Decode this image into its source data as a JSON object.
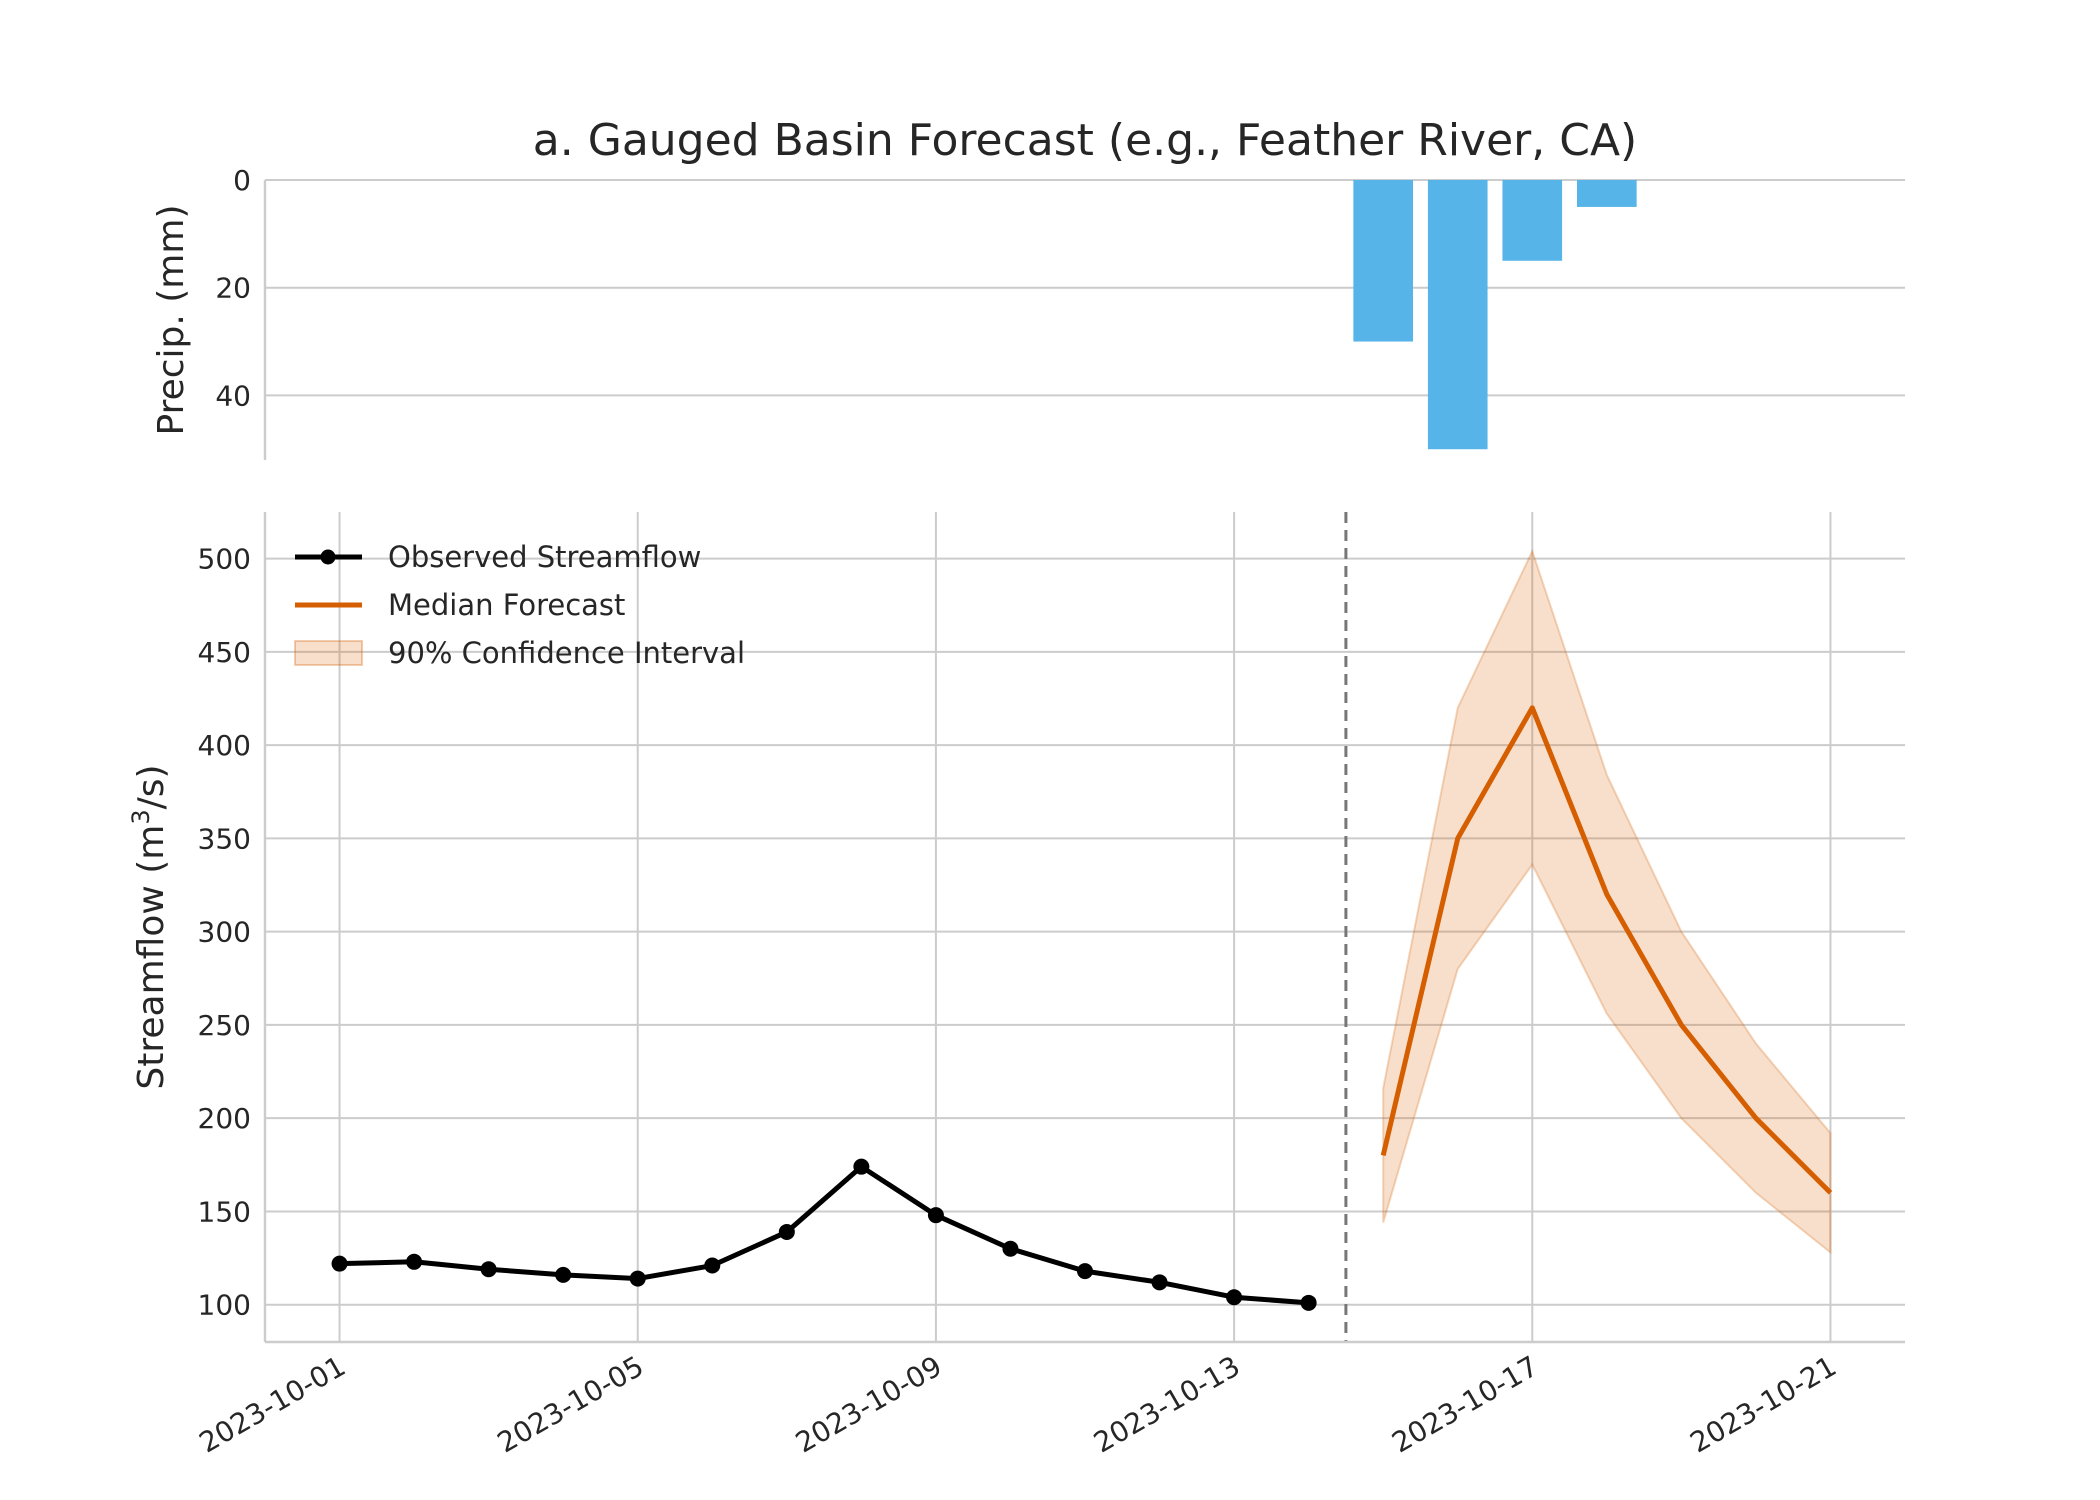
{
  "chart_data": {
    "type": "line",
    "title": "a. Gauged Basin Forecast (e.g., Feather River, CA)",
    "precip_panel": {
      "type": "bar",
      "ylabel": "Precip. (mm)",
      "ylim": [
        52,
        0
      ],
      "yticks": [
        0,
        20,
        40
      ],
      "inverted_y": true,
      "color": "#56B4E9",
      "x": [
        "2023-10-15",
        "2023-10-16",
        "2023-10-17",
        "2023-10-18"
      ],
      "values": [
        30,
        50,
        15,
        5
      ],
      "grid": "horizontal"
    },
    "flow_panel": {
      "ylabel": "Streamflow (m",
      "ylabel_sup": "3",
      "ylabel_end": "/s)",
      "ylim": [
        80,
        525
      ],
      "yticks": [
        100,
        150,
        200,
        250,
        300,
        350,
        400,
        450,
        500
      ],
      "xlim": [
        "2023-09-30",
        "2023-10-22"
      ],
      "xticks": [
        "2023-10-01",
        "2023-10-05",
        "2023-10-09",
        "2023-10-13",
        "2023-10-17",
        "2023-10-21"
      ],
      "forecast_start_line": "2023-10-14T12:00",
      "grid": "both",
      "series": [
        {
          "name": "Observed Streamflow",
          "color": "#000000",
          "marker": "circle",
          "x": [
            "2023-10-01",
            "2023-10-02",
            "2023-10-03",
            "2023-10-04",
            "2023-10-05",
            "2023-10-06",
            "2023-10-07",
            "2023-10-08",
            "2023-10-09",
            "2023-10-10",
            "2023-10-11",
            "2023-10-12",
            "2023-10-13",
            "2023-10-14"
          ],
          "values": [
            122,
            123,
            119,
            116,
            114,
            121,
            139,
            174,
            148,
            130,
            118,
            112,
            104,
            101
          ]
        },
        {
          "name": "Median Forecast",
          "color": "#D55E00",
          "x": [
            "2023-10-15",
            "2023-10-16",
            "2023-10-17",
            "2023-10-18",
            "2023-10-19",
            "2023-10-20",
            "2023-10-21"
          ],
          "values": [
            180,
            350,
            420,
            320,
            250,
            200,
            160
          ]
        }
      ],
      "interval": {
        "name": "90% Confidence Interval",
        "color": "#D55E00",
        "x": [
          "2023-10-15",
          "2023-10-16",
          "2023-10-17",
          "2023-10-18",
          "2023-10-19",
          "2023-10-20",
          "2023-10-21"
        ],
        "lower": [
          144,
          280,
          336,
          256,
          200,
          160,
          128
        ],
        "upper": [
          216,
          420,
          504,
          384,
          300,
          240,
          192
        ]
      },
      "legend_position": "upper-left"
    }
  }
}
